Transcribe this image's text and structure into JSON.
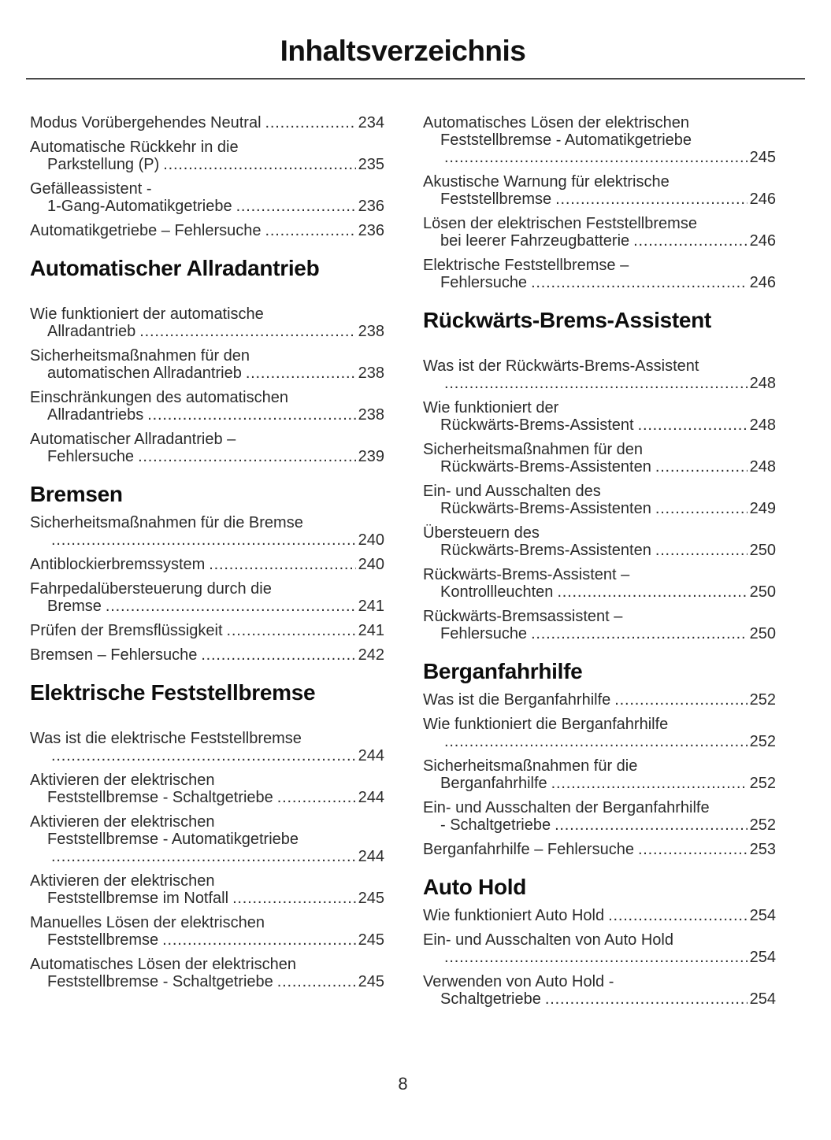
{
  "page": {
    "title": "Inhaltsverzeichnis",
    "page_number": "8"
  },
  "colors": {
    "body_text": "#2b2b2b",
    "heading_text": "#0d0d0d",
    "rule": "#4a4a4a",
    "background": "#ffffff"
  },
  "toc": {
    "columns": [
      {
        "sections": [
          {
            "heading": null,
            "gap_after_heading": false,
            "entries": [
              {
                "lines": [
                  {
                    "text": "Modus Vorübergehendes Neutral",
                    "page": "234"
                  }
                ]
              },
              {
                "lines": [
                  {
                    "text": "Automatische Rückkehr in die"
                  },
                  {
                    "text": "Parkstellung (P)",
                    "page": "235",
                    "indent": true
                  }
                ]
              },
              {
                "lines": [
                  {
                    "text": "Gefälleassistent -"
                  },
                  {
                    "text": "1-Gang-Automatikgetriebe",
                    "page": "236",
                    "indent": true
                  }
                ]
              },
              {
                "lines": [
                  {
                    "text": "Automatikgetriebe – Fehlersuche",
                    "page": "236"
                  }
                ]
              }
            ]
          },
          {
            "heading": "Automatischer Allradantrieb",
            "gap_after_heading": true,
            "entries": [
              {
                "lines": [
                  {
                    "text": "Wie funktioniert der automatische"
                  },
                  {
                    "text": "Allradantrieb",
                    "page": "238",
                    "indent": true
                  }
                ]
              },
              {
                "lines": [
                  {
                    "text": "Sicherheitsmaßnahmen für den"
                  },
                  {
                    "text": "automatischen Allradantrieb",
                    "page": "238",
                    "indent": true
                  }
                ]
              },
              {
                "lines": [
                  {
                    "text": "Einschränkungen des automatischen"
                  },
                  {
                    "text": "Allradantriebs",
                    "page": "238",
                    "indent": true
                  }
                ]
              },
              {
                "lines": [
                  {
                    "text": "Automatischer Allradantrieb –"
                  },
                  {
                    "text": "Fehlersuche",
                    "page": "239",
                    "indent": true
                  }
                ]
              }
            ]
          },
          {
            "heading": "Bremsen",
            "gap_after_heading": false,
            "entries": [
              {
                "lines": [
                  {
                    "text": "Sicherheitsmaßnahmen für die Bremse"
                  },
                  {
                    "text": "",
                    "page": "240",
                    "indent": true
                  }
                ]
              },
              {
                "lines": [
                  {
                    "text": "Antiblockierbremssystem",
                    "page": "240"
                  }
                ]
              },
              {
                "lines": [
                  {
                    "text": "Fahrpedalübersteuerung durch die"
                  },
                  {
                    "text": "Bremse",
                    "page": "241",
                    "indent": true
                  }
                ]
              },
              {
                "lines": [
                  {
                    "text": "Prüfen der Bremsflüssigkeit",
                    "page": "241"
                  }
                ]
              },
              {
                "lines": [
                  {
                    "text": "Bremsen – Fehlersuche",
                    "page": "242"
                  }
                ]
              }
            ]
          },
          {
            "heading": "Elektrische Feststellbremse",
            "gap_after_heading": true,
            "entries": [
              {
                "lines": [
                  {
                    "text": "Was ist die elektrische Feststellbremse"
                  },
                  {
                    "text": "",
                    "page": "244",
                    "indent": true
                  }
                ]
              },
              {
                "lines": [
                  {
                    "text": "Aktivieren der elektrischen"
                  },
                  {
                    "text": "Feststellbremse - Schaltgetriebe",
                    "page": "244",
                    "indent": true
                  }
                ]
              },
              {
                "lines": [
                  {
                    "text": "Aktivieren der elektrischen"
                  },
                  {
                    "text": "Feststellbremse - Automatikgetriebe",
                    "indent": true
                  },
                  {
                    "text": "",
                    "page": "244",
                    "indent": true
                  }
                ]
              },
              {
                "lines": [
                  {
                    "text": "Aktivieren der elektrischen"
                  },
                  {
                    "text": "Feststellbremse im Notfall",
                    "page": "245",
                    "indent": true
                  }
                ]
              },
              {
                "lines": [
                  {
                    "text": "Manuelles Lösen der elektrischen"
                  },
                  {
                    "text": "Feststellbremse",
                    "page": "245",
                    "indent": true
                  }
                ]
              },
              {
                "lines": [
                  {
                    "text": "Automatisches Lösen der elektrischen"
                  },
                  {
                    "text": "Feststellbremse - Schaltgetriebe",
                    "page": "245",
                    "indent": true
                  }
                ]
              }
            ]
          }
        ]
      },
      {
        "sections": [
          {
            "heading": null,
            "gap_after_heading": false,
            "entries": [
              {
                "lines": [
                  {
                    "text": "Automatisches Lösen der elektrischen"
                  },
                  {
                    "text": "Feststellbremse - Automatikgetriebe",
                    "indent": true
                  },
                  {
                    "text": "",
                    "page": "245",
                    "indent": true
                  }
                ]
              },
              {
                "lines": [
                  {
                    "text": "Akustische Warnung für elektrische"
                  },
                  {
                    "text": "Feststellbremse",
                    "page": "246",
                    "indent": true
                  }
                ]
              },
              {
                "lines": [
                  {
                    "text": "Lösen der elektrischen Feststellbremse"
                  },
                  {
                    "text": "bei leerer Fahrzeugbatterie",
                    "page": "246",
                    "indent": true
                  }
                ]
              },
              {
                "lines": [
                  {
                    "text": "Elektrische Feststellbremse –"
                  },
                  {
                    "text": "Fehlersuche",
                    "page": "246",
                    "indent": true
                  }
                ]
              }
            ]
          },
          {
            "heading": "Rückwärts-Brems-Assistent",
            "gap_after_heading": true,
            "entries": [
              {
                "lines": [
                  {
                    "text": "Was ist der Rückwärts-Brems-Assistent"
                  },
                  {
                    "text": "",
                    "page": "248",
                    "indent": true
                  }
                ]
              },
              {
                "lines": [
                  {
                    "text": "Wie funktioniert der"
                  },
                  {
                    "text": "Rückwärts-Brems-Assistent",
                    "page": "248",
                    "indent": true
                  }
                ]
              },
              {
                "lines": [
                  {
                    "text": "Sicherheitsmaßnahmen für den"
                  },
                  {
                    "text": "Rückwärts-Brems-Assistenten",
                    "page": "248",
                    "indent": true
                  }
                ]
              },
              {
                "lines": [
                  {
                    "text": "Ein- und Ausschalten des"
                  },
                  {
                    "text": "Rückwärts-Brems-Assistenten",
                    "page": "249",
                    "indent": true
                  }
                ]
              },
              {
                "lines": [
                  {
                    "text": "Übersteuern des"
                  },
                  {
                    "text": "Rückwärts-Brems-Assistenten",
                    "page": "250",
                    "indent": true
                  }
                ]
              },
              {
                "lines": [
                  {
                    "text": "Rückwärts-Brems-Assistent –"
                  },
                  {
                    "text": "Kontrollleuchten",
                    "page": "250",
                    "indent": true
                  }
                ]
              },
              {
                "lines": [
                  {
                    "text": "Rückwärts-Bremsassistent –"
                  },
                  {
                    "text": "Fehlersuche",
                    "page": "250",
                    "indent": true
                  }
                ]
              }
            ]
          },
          {
            "heading": "Berganfahrhilfe",
            "gap_after_heading": false,
            "entries": [
              {
                "lines": [
                  {
                    "text": "Was ist die Berganfahrhilfe",
                    "page": "252"
                  }
                ]
              },
              {
                "lines": [
                  {
                    "text": "Wie funktioniert die Berganfahrhilfe"
                  },
                  {
                    "text": "",
                    "page": "252",
                    "indent": true
                  }
                ]
              },
              {
                "lines": [
                  {
                    "text": "Sicherheitsmaßnahmen für die"
                  },
                  {
                    "text": "Berganfahrhilfe",
                    "page": "252",
                    "indent": true
                  }
                ]
              },
              {
                "lines": [
                  {
                    "text": "Ein- und Ausschalten der Berganfahrhilfe"
                  },
                  {
                    "text": "- Schaltgetriebe",
                    "page": "252",
                    "indent": true
                  }
                ]
              },
              {
                "lines": [
                  {
                    "text": "Berganfahrhilfe – Fehlersuche",
                    "page": "253"
                  }
                ]
              }
            ]
          },
          {
            "heading": "Auto Hold",
            "gap_after_heading": false,
            "entries": [
              {
                "lines": [
                  {
                    "text": "Wie funktioniert Auto Hold",
                    "page": "254"
                  }
                ]
              },
              {
                "lines": [
                  {
                    "text": "Ein- und Ausschalten von Auto Hold"
                  },
                  {
                    "text": "",
                    "page": "254",
                    "indent": true
                  }
                ]
              },
              {
                "lines": [
                  {
                    "text": "Verwenden von Auto Hold -"
                  },
                  {
                    "text": "Schaltgetriebe",
                    "page": "254",
                    "indent": true
                  }
                ]
              }
            ]
          }
        ]
      }
    ]
  }
}
